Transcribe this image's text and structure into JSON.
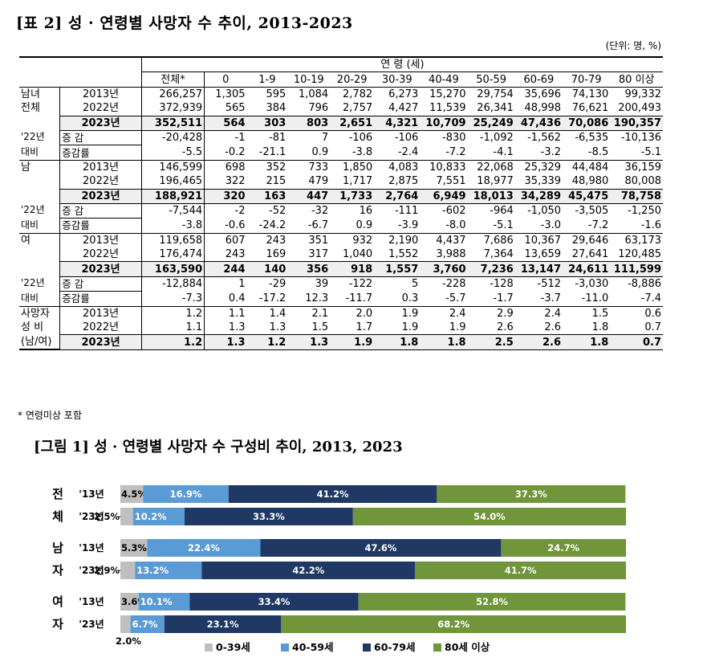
{
  "table": {
    "title": "[표 2] 성 · 연령별 사망자 수 추이, 2013-2023",
    "unit": "(단위: 명, %)",
    "age_header": "연   령 (세)",
    "columns": [
      "전체*",
      "0",
      "1-9",
      "10-19",
      "20-29",
      "30-39",
      "40-49",
      "50-59",
      "60-69",
      "70-79",
      "80 이상"
    ],
    "groups": [
      {
        "label_lines": [
          "남녀",
          "전체"
        ],
        "rows": [
          {
            "label": "2013년",
            "values": [
              "266,257",
              "1,305",
              "595",
              "1,084",
              "2,782",
              "6,273",
              "15,270",
              "29,754",
              "35,696",
              "74,130",
              "99,332"
            ]
          },
          {
            "label": "2022년",
            "values": [
              "372,939",
              "565",
              "384",
              "796",
              "2,757",
              "4,427",
              "11,539",
              "26,341",
              "48,998",
              "76,621",
              "200,493"
            ]
          },
          {
            "label": "2023년",
            "values": [
              "352,511",
              "564",
              "303",
              "803",
              "2,651",
              "4,321",
              "10,709",
              "25,249",
              "47,436",
              "70,086",
              "190,357"
            ]
          },
          {
            "label": "증  감",
            "values": [
              "-20,428",
              "-1",
              "-81",
              "7",
              "-106",
              "-106",
              "-830",
              "-1,092",
              "-1,562",
              "-6,535",
              "-10,136"
            ]
          },
          {
            "label": "증감률",
            "values": [
              "-5.5",
              "-0.2",
              "-21.1",
              "0.9",
              "-3.8",
              "-2.4",
              "-7.2",
              "-4.1",
              "-3.2",
              "-8.5",
              "-5.1"
            ]
          }
        ]
      },
      {
        "label_lines": [
          "남"
        ],
        "rows": [
          {
            "label": "2013년",
            "values": [
              "146,599",
              "698",
              "352",
              "733",
              "1,850",
              "4,083",
              "10,833",
              "22,068",
              "25,329",
              "44,484",
              "36,159"
            ]
          },
          {
            "label": "2022년",
            "values": [
              "196,465",
              "322",
              "215",
              "479",
              "1,717",
              "2,875",
              "7,551",
              "18,977",
              "35,339",
              "48,980",
              "80,008"
            ]
          },
          {
            "label": "2023년",
            "values": [
              "188,921",
              "320",
              "163",
              "447",
              "1,733",
              "2,764",
              "6,949",
              "18,013",
              "34,289",
              "45,475",
              "78,758"
            ]
          },
          {
            "label": "증  감",
            "values": [
              "-7,544",
              "-2",
              "-52",
              "-32",
              "16",
              "-111",
              "-602",
              "-964",
              "-1,050",
              "-3,505",
              "-1,250"
            ]
          },
          {
            "label": "증감률",
            "values": [
              "-3.8",
              "-0.6",
              "-24.2",
              "-6.7",
              "0.9",
              "-3.9",
              "-8.0",
              "-5.1",
              "-3.0",
              "-7.2",
              "-1.6"
            ]
          }
        ]
      },
      {
        "label_lines": [
          "여"
        ],
        "rows": [
          {
            "label": "2013년",
            "values": [
              "119,658",
              "607",
              "243",
              "351",
              "932",
              "2,190",
              "4,437",
              "7,686",
              "10,367",
              "29,646",
              "63,173"
            ]
          },
          {
            "label": "2022년",
            "values": [
              "176,474",
              "243",
              "169",
              "317",
              "1,040",
              "1,552",
              "3,988",
              "7,364",
              "13,659",
              "27,641",
              "120,485"
            ]
          },
          {
            "label": "2023년",
            "values": [
              "163,590",
              "244",
              "140",
              "356",
              "918",
              "1,557",
              "3,760",
              "7,236",
              "13,147",
              "24,611",
              "111,599"
            ]
          },
          {
            "label": "증  감",
            "values": [
              "-12,884",
              "1",
              "-29",
              "39",
              "-122",
              "5",
              "-228",
              "-128",
              "-512",
              "-3,030",
              "-8,886"
            ]
          },
          {
            "label": "증감률",
            "values": [
              "-7.3",
              "0.4",
              "-17.2",
              "12.3",
              "-11.7",
              "0.3",
              "-5.7",
              "-1.7",
              "-3.7",
              "-11.0",
              "-7.4"
            ]
          }
        ]
      },
      {
        "label_lines": [
          "사망자",
          "성  비",
          "(남/여)"
        ],
        "rows": [
          {
            "label": "2013년",
            "values": [
              "1.2",
              "1.1",
              "1.4",
              "2.1",
              "2.0",
              "1.9",
              "2.4",
              "2.9",
              "2.4",
              "1.5",
              "0.6"
            ]
          },
          {
            "label": "2022년",
            "values": [
              "1.1",
              "1.3",
              "1.3",
              "1.5",
              "1.7",
              "1.9",
              "1.9",
              "2.6",
              "2.6",
              "1.8",
              "0.7"
            ]
          },
          {
            "label": "2023년",
            "values": [
              "1.2",
              "1.3",
              "1.2",
              "1.3",
              "1.9",
              "1.8",
              "1.8",
              "2.5",
              "2.6",
              "1.8",
              "0.7"
            ]
          }
        ]
      }
    ],
    "change_prefix_1": "'22년",
    "change_prefix_2": "대비",
    "footnote": "* 연령미상 포함"
  },
  "chart_data": {
    "type": "bar",
    "orientation": "horizontal-stacked-100",
    "title": "[그림 1] 성 · 연령별 사망자 수 구성비 추이, 2013, 2023",
    "groups": [
      {
        "label_top": "전",
        "label_bottom": "체"
      },
      {
        "label_top": "남",
        "label_bottom": "자"
      },
      {
        "label_top": "여",
        "label_bottom": "자"
      }
    ],
    "categories": [
      "'13년",
      "'23년",
      "'13년",
      "'23년",
      "'13년",
      "'23년"
    ],
    "series": [
      {
        "name": "0-39세",
        "color": "#bfbfbf",
        "values": [
          4.5,
          2.5,
          5.3,
          2.9,
          3.6,
          2.0
        ]
      },
      {
        "name": "40-59세",
        "color": "#5b9bd5",
        "values": [
          16.9,
          10.2,
          22.4,
          13.2,
          10.1,
          6.7
        ]
      },
      {
        "name": "60-79세",
        "color": "#1f3864",
        "values": [
          41.2,
          33.3,
          47.6,
          42.2,
          33.4,
          23.1
        ]
      },
      {
        "name": "80세 이상",
        "color": "#70953a",
        "values": [
          37.3,
          54.0,
          24.7,
          41.7,
          52.8,
          68.2
        ]
      }
    ],
    "data_labels": [
      [
        "4.5%",
        "16.9%",
        "41.2%",
        "37.3%"
      ],
      [
        "2.5%",
        "10.2%",
        "33.3%",
        "54.0%"
      ],
      [
        "5.3%",
        "22.4%",
        "47.6%",
        "24.7%"
      ],
      [
        "2.9%",
        "13.2%",
        "42.2%",
        "41.7%"
      ],
      [
        "3.6%",
        "10.1%",
        "33.4%",
        "52.8%"
      ],
      [
        "2.0%",
        "6.7%",
        "23.1%",
        "68.2%"
      ]
    ],
    "xlim": [
      0,
      100
    ],
    "legend": "bottom"
  }
}
